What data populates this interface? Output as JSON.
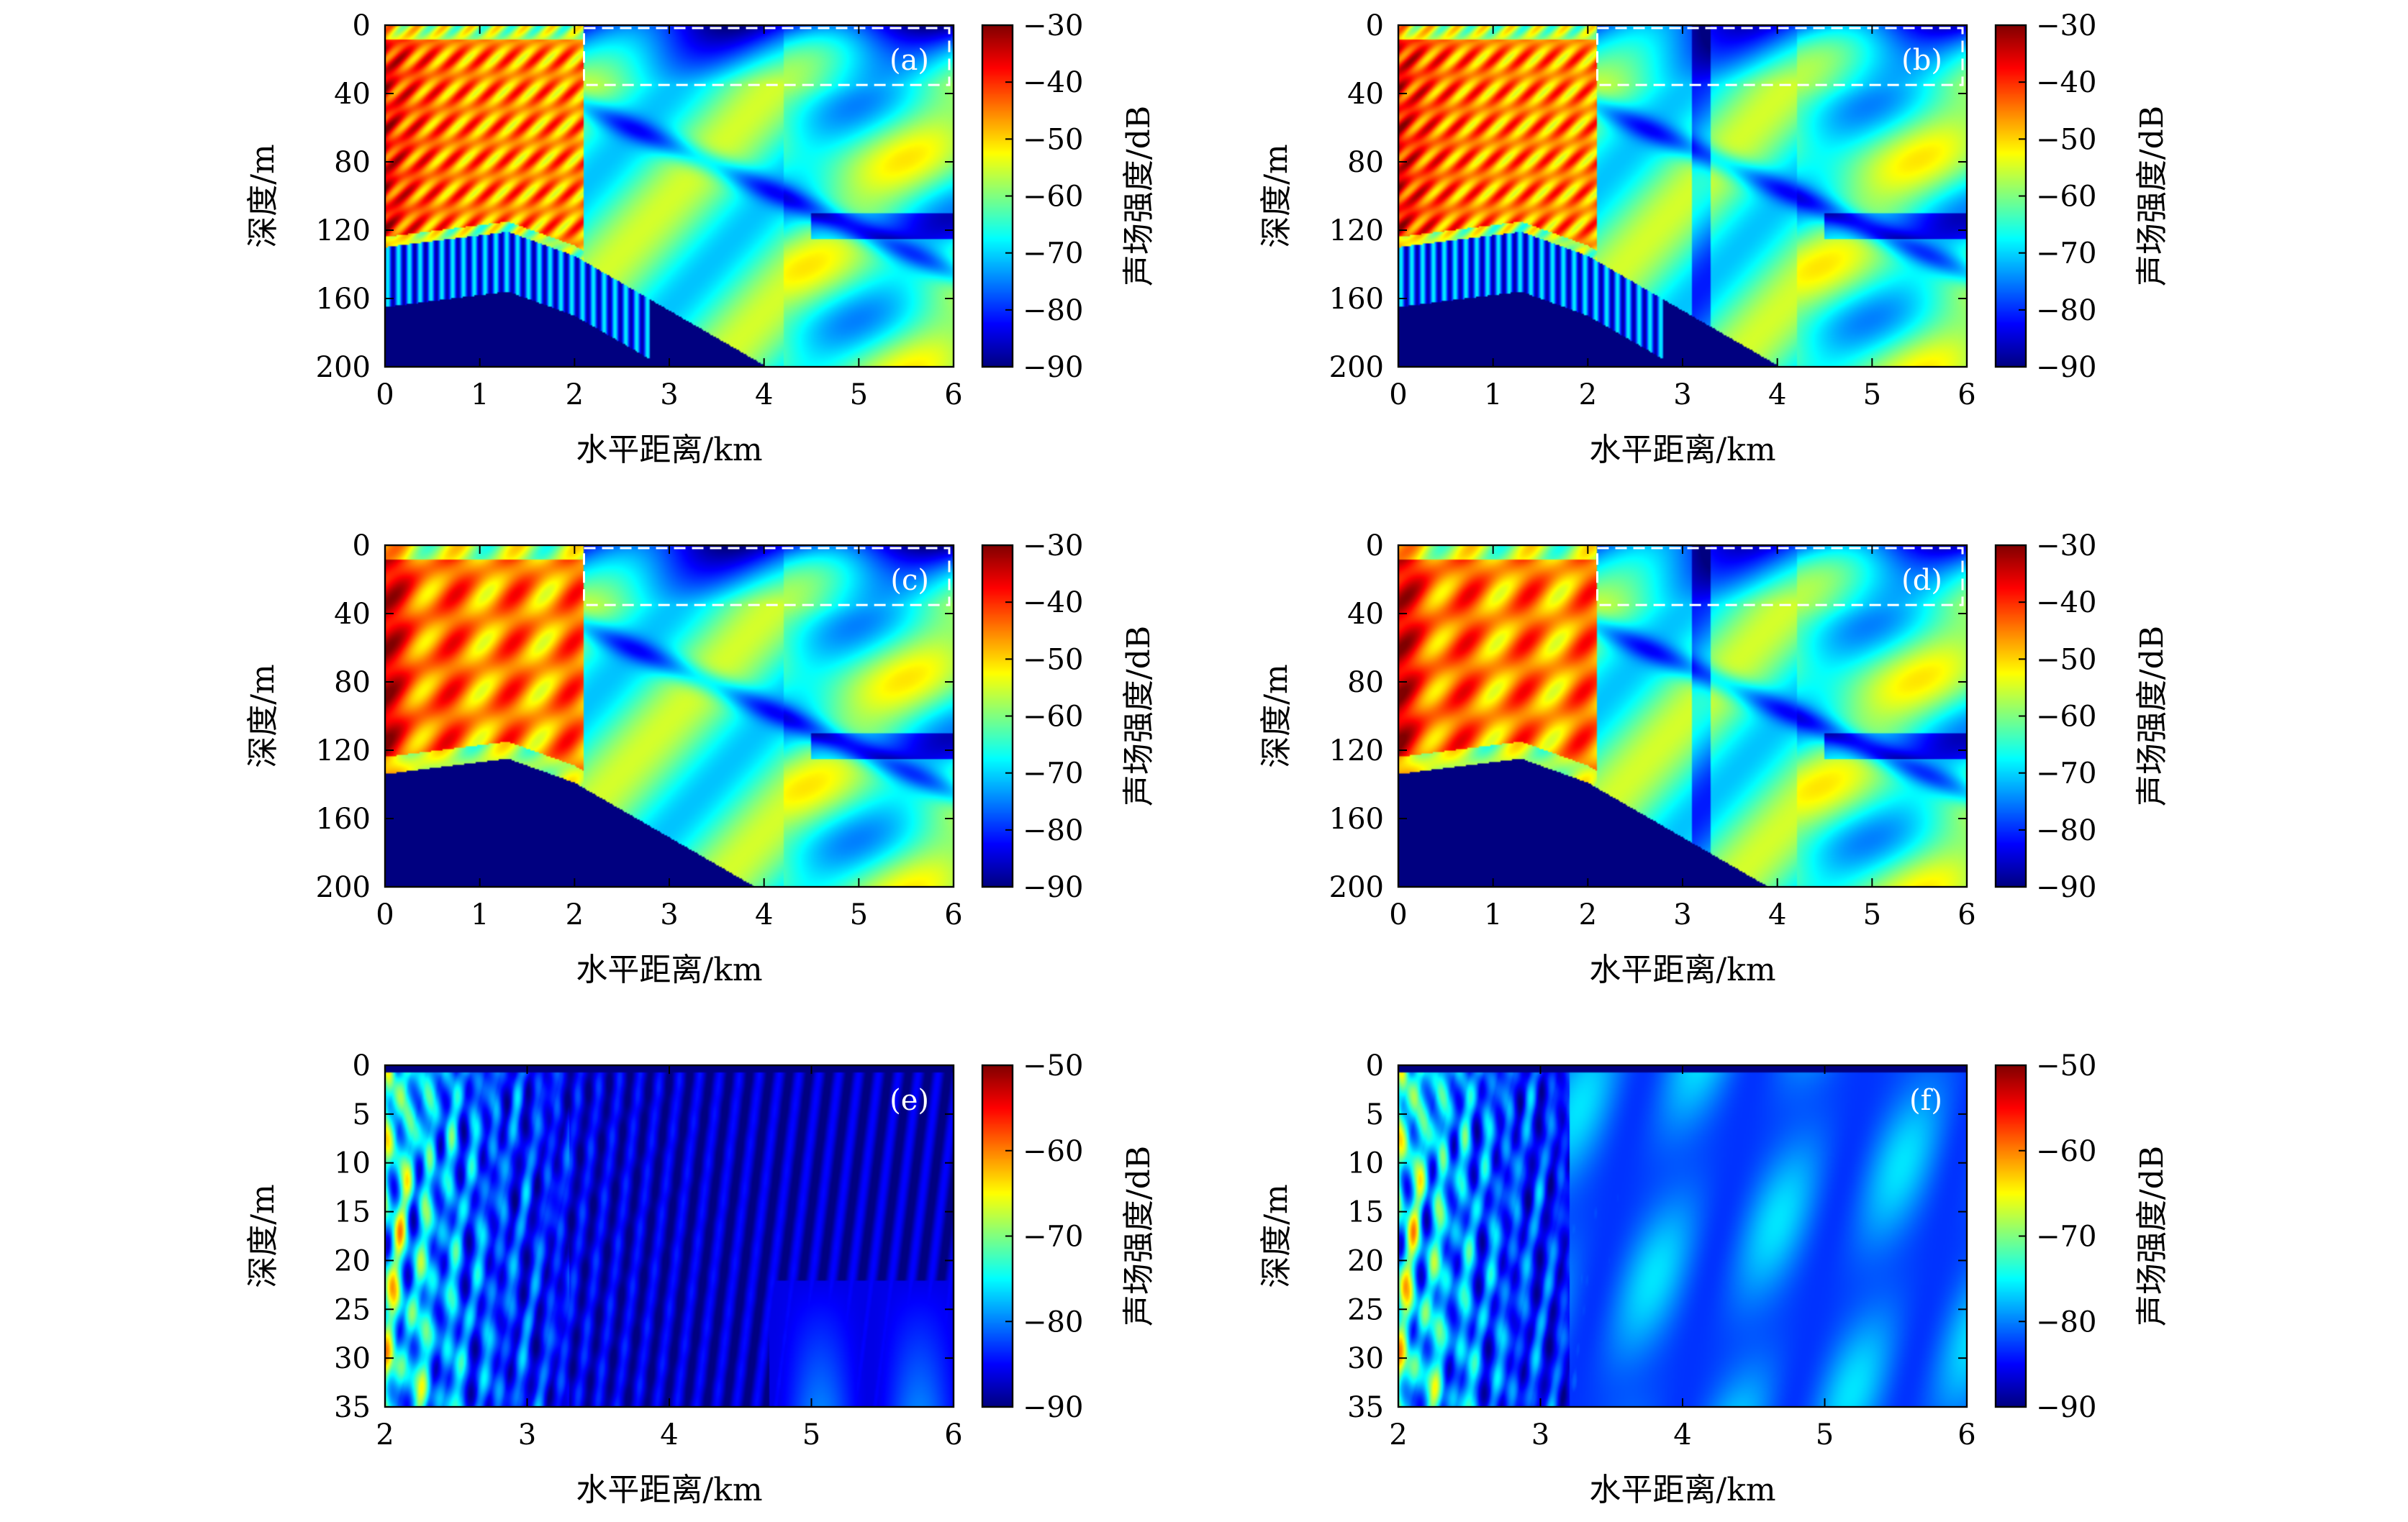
{
  "figure": {
    "colormap": "jet",
    "palette": [
      "#000080",
      "#0000ff",
      "#0080ff",
      "#00ffff",
      "#80ff80",
      "#ffff00",
      "#ff8000",
      "#ff0000",
      "#800000"
    ]
  },
  "chart_data": [
    {
      "id": "a",
      "type": "heatmap",
      "panel_label": "(a)",
      "xlabel": "水平距离/km",
      "ylabel": "深度/m",
      "colorbar_label": "声场强度/dB",
      "xlim": [
        0,
        6
      ],
      "ylim": [
        0,
        200
      ],
      "y_inverted": true,
      "xticks": [
        "0",
        "1",
        "2",
        "3",
        "4",
        "5",
        "6"
      ],
      "yticks": [
        "0",
        "40",
        "80",
        "120",
        "160",
        "200"
      ],
      "clim": [
        -90,
        -30
      ],
      "cbar_ticks": [
        "−30",
        "−40",
        "−50",
        "−60",
        "−70",
        "−80",
        "−90"
      ],
      "highlight_box": {
        "x": [
          2.1,
          6
        ],
        "y": [
          0,
          35
        ]
      },
      "field": "fine"
    },
    {
      "id": "b",
      "type": "heatmap",
      "panel_label": "(b)",
      "xlabel": "水平距离/km",
      "ylabel": "深度/m",
      "colorbar_label": "声场强度/dB",
      "xlim": [
        0,
        6
      ],
      "ylim": [
        0,
        200
      ],
      "y_inverted": true,
      "xticks": [
        "0",
        "1",
        "2",
        "3",
        "4",
        "5",
        "6"
      ],
      "yticks": [
        "0",
        "40",
        "80",
        "120",
        "160",
        "200"
      ],
      "clim": [
        -90,
        -30
      ],
      "cbar_ticks": [
        "−30",
        "−40",
        "−50",
        "−60",
        "−70",
        "−80",
        "−90"
      ],
      "highlight_box": {
        "x": [
          2.1,
          6
        ],
        "y": [
          0,
          35
        ]
      },
      "field": "fine-eddy"
    },
    {
      "id": "c",
      "type": "heatmap",
      "panel_label": "(c)",
      "xlabel": "水平距离/km",
      "ylabel": "深度/m",
      "colorbar_label": "声场强度/dB",
      "xlim": [
        0,
        6
      ],
      "ylim": [
        0,
        200
      ],
      "y_inverted": true,
      "xticks": [
        "0",
        "1",
        "2",
        "3",
        "4",
        "5",
        "6"
      ],
      "yticks": [
        "0",
        "40",
        "80",
        "120",
        "160",
        "200"
      ],
      "clim": [
        -90,
        -30
      ],
      "cbar_ticks": [
        "−30",
        "−40",
        "−50",
        "−60",
        "−70",
        "−80",
        "−90"
      ],
      "highlight_box": {
        "x": [
          2.1,
          6
        ],
        "y": [
          0,
          35
        ]
      },
      "field": "smooth"
    },
    {
      "id": "d",
      "type": "heatmap",
      "panel_label": "(d)",
      "xlabel": "水平距离/km",
      "ylabel": "深度/m",
      "colorbar_label": "声场强度/dB",
      "xlim": [
        0,
        6
      ],
      "ylim": [
        0,
        200
      ],
      "y_inverted": true,
      "xticks": [
        "0",
        "1",
        "2",
        "3",
        "4",
        "5",
        "6"
      ],
      "yticks": [
        "0",
        "40",
        "80",
        "120",
        "160",
        "200"
      ],
      "clim": [
        -90,
        -30
      ],
      "cbar_ticks": [
        "−30",
        "−40",
        "−50",
        "−60",
        "−70",
        "−80",
        "−90"
      ],
      "highlight_box": {
        "x": [
          2.1,
          6
        ],
        "y": [
          0,
          35
        ]
      },
      "field": "smooth-eddy"
    },
    {
      "id": "e",
      "type": "heatmap",
      "panel_label": "(e)",
      "xlabel": "水平距离/km",
      "ylabel": "深度/m",
      "colorbar_label": "声场强度/dB",
      "xlim": [
        2,
        6
      ],
      "ylim": [
        0,
        35
      ],
      "y_inverted": true,
      "xticks": [
        "2",
        "3",
        "4",
        "5",
        "6"
      ],
      "yticks": [
        "0",
        "5",
        "10",
        "15",
        "20",
        "25",
        "30",
        "35"
      ],
      "clim": [
        -90,
        -50
      ],
      "cbar_ticks": [
        "−50",
        "−60",
        "−70",
        "−80",
        "−90"
      ],
      "field": "zoom"
    },
    {
      "id": "f",
      "type": "heatmap",
      "panel_label": "(f)",
      "xlabel": "水平距离/km",
      "ylabel": "深度/m",
      "colorbar_label": "声场强度/dB",
      "xlim": [
        2,
        6
      ],
      "ylim": [
        0,
        35
      ],
      "y_inverted": true,
      "xticks": [
        "2",
        "3",
        "4",
        "5",
        "6"
      ],
      "yticks": [
        "0",
        "5",
        "10",
        "15",
        "20",
        "25",
        "30",
        "35"
      ],
      "clim": [
        -90,
        -50
      ],
      "cbar_ticks": [
        "−50",
        "−60",
        "−70",
        "−80",
        "−90"
      ],
      "field": "zoom-eddy"
    }
  ]
}
